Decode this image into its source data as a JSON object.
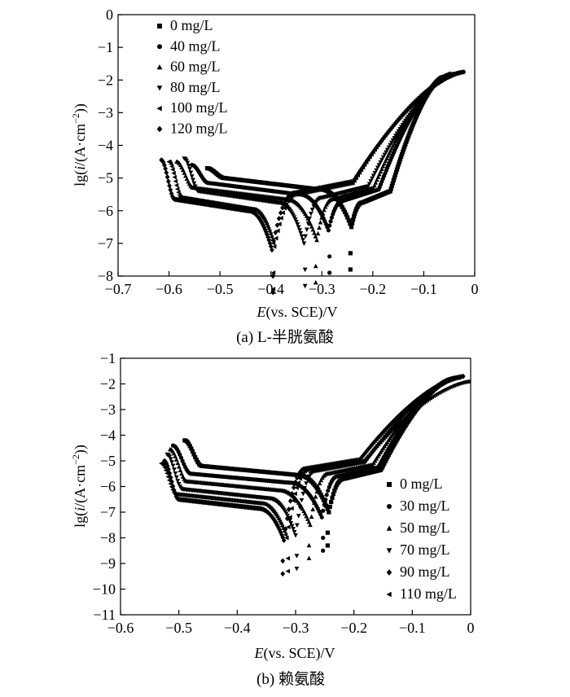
{
  "figure": {
    "captions": [
      "(a) L-半胱氨酸",
      "(b) 赖氨酸"
    ]
  },
  "chart_data": [
    {
      "type": "scatter",
      "panel": "a",
      "caption": "(a) L-半胱氨酸",
      "xlabel_italic": "E",
      "xlabel_rest": "(vs. SCE)/V",
      "ylabel_prefix": "lg(",
      "ylabel_italic": "i",
      "ylabel_rest": "/(A·cm",
      "ylabel_sup": "−2",
      "ylabel_close": "))",
      "xlim": [
        -0.7,
        0
      ],
      "ylim": [
        -8,
        0
      ],
      "xticks": [
        -0.7,
        -0.6,
        -0.5,
        -0.4,
        -0.3,
        -0.2,
        -0.1,
        0
      ],
      "xtick_labels": [
        "−0.7",
        "−0.6",
        "−0.5",
        "−0.4",
        "−0.3",
        "−0.2",
        "−0.1",
        "0"
      ],
      "yticks": [
        0,
        -1,
        -2,
        -3,
        -4,
        -5,
        -6,
        -7,
        -8
      ],
      "ytick_labels": [
        "0",
        "−1",
        "−2",
        "−3",
        "−4",
        "−5",
        "−6",
        "−7",
        "−8"
      ],
      "legend_position": "top-left",
      "series": [
        {
          "name": "0 mg/L",
          "marker": "square",
          "E_start": -0.525,
          "E_corr": -0.242,
          "E_end": -0.06,
          "i_start": -4.7,
          "i_corr": -6.5,
          "i_end": -1.9,
          "cathodic_plateau": -5.0,
          "anodic_plateau": -5.75
        },
        {
          "name": "40 mg/L",
          "marker": "circle",
          "E_start": -0.555,
          "E_corr": -0.287,
          "E_end": -0.052,
          "i_start": -4.6,
          "i_corr": -6.6,
          "i_end": -1.85,
          "cathodic_plateau": -5.15,
          "anodic_plateau": -5.7
        },
        {
          "name": "60 mg/L",
          "marker": "triangle-up",
          "E_start": -0.585,
          "E_corr": -0.31,
          "E_end": -0.045,
          "i_start": -4.5,
          "i_corr": -6.9,
          "i_end": -1.8,
          "cathodic_plateau": -5.3,
          "anodic_plateau": -5.65
        },
        {
          "name": "80 mg/L",
          "marker": "triangle-down",
          "E_start": -0.57,
          "E_corr": -0.335,
          "E_end": -0.035,
          "i_start": -4.4,
          "i_corr": -7.0,
          "i_end": -1.8,
          "cathodic_plateau": -5.4,
          "anodic_plateau": -5.6
        },
        {
          "name": "100 mg/L",
          "marker": "triangle-left",
          "E_start": -0.6,
          "E_corr": -0.393,
          "E_end": -0.025,
          "i_start": -4.5,
          "i_corr": -7.1,
          "i_end": -1.75,
          "cathodic_plateau": -5.6,
          "anodic_plateau": -5.5
        },
        {
          "name": "120 mg/L",
          "marker": "diamond",
          "E_start": -0.615,
          "E_corr": -0.398,
          "E_end": -0.018,
          "i_start": -4.45,
          "i_corr": -7.2,
          "i_end": -1.75,
          "cathodic_plateau": -5.65,
          "anodic_plateau": -5.45
        }
      ]
    },
    {
      "type": "scatter",
      "panel": "b",
      "caption": "(b) 赖氨酸",
      "xlabel_italic": "E",
      "xlabel_rest": "(vs. SCE)/V",
      "ylabel_prefix": "lg(",
      "ylabel_italic": "i",
      "ylabel_rest": "/(A·cm",
      "ylabel_sup": "−2",
      "ylabel_close": "))",
      "xlim": [
        -0.6,
        0
      ],
      "ylim": [
        -11,
        -1
      ],
      "xticks": [
        -0.6,
        -0.5,
        -0.4,
        -0.3,
        -0.2,
        -0.1,
        0
      ],
      "xtick_labels": [
        "−0.6",
        "−0.5",
        "−0.4",
        "−0.3",
        "−0.2",
        "−0.1",
        "0"
      ],
      "yticks": [
        -1,
        -2,
        -3,
        -4,
        -5,
        -6,
        -7,
        -8,
        -9,
        -10,
        -11
      ],
      "ytick_labels": [
        "−1",
        "−2",
        "−3",
        "−4",
        "−5",
        "−6",
        "−7",
        "−8",
        "−9",
        "−10",
        "−11"
      ],
      "legend_position": "bottom-right",
      "series": [
        {
          "name": "0 mg/L",
          "marker": "square",
          "E_start": -0.49,
          "E_corr": -0.243,
          "E_end": -0.03,
          "i_start": -4.2,
          "i_corr": -7.0,
          "i_end": -1.8,
          "cathodic_plateau": -5.2,
          "anodic_plateau": -5.7
        },
        {
          "name": "30 mg/L",
          "marker": "circle",
          "E_start": -0.51,
          "E_corr": -0.255,
          "E_end": -0.025,
          "i_start": -4.4,
          "i_corr": -7.2,
          "i_end": -1.75,
          "cathodic_plateau": -5.5,
          "anodic_plateau": -5.6
        },
        {
          "name": "50 mg/L",
          "marker": "triangle-up",
          "E_start": -0.515,
          "E_corr": -0.275,
          "E_end": -0.02,
          "i_start": -4.55,
          "i_corr": -7.5,
          "i_end": -1.75,
          "cathodic_plateau": -5.8,
          "anodic_plateau": -5.5
        },
        {
          "name": "70 mg/L",
          "marker": "triangle-down",
          "E_start": -0.52,
          "E_corr": -0.3,
          "E_end": -0.015,
          "i_start": -4.75,
          "i_corr": -7.9,
          "i_end": -1.75,
          "cathodic_plateau": -6.1,
          "anodic_plateau": -5.4
        },
        {
          "name": "90 mg/L",
          "marker": "diamond",
          "E_start": -0.525,
          "E_corr": -0.32,
          "E_end": -0.01,
          "i_start": -5.0,
          "i_corr": -8.1,
          "i_end": -1.7,
          "cathodic_plateau": -6.5,
          "anodic_plateau": -5.3
        },
        {
          "name": "110 mg/L",
          "marker": "triangle-left",
          "E_start": -0.53,
          "E_corr": -0.315,
          "E_end": 0.0,
          "i_start": -5.1,
          "i_corr": -8.0,
          "i_end": -1.9,
          "cathodic_plateau": -6.3,
          "anodic_plateau": -5.35
        }
      ]
    }
  ]
}
